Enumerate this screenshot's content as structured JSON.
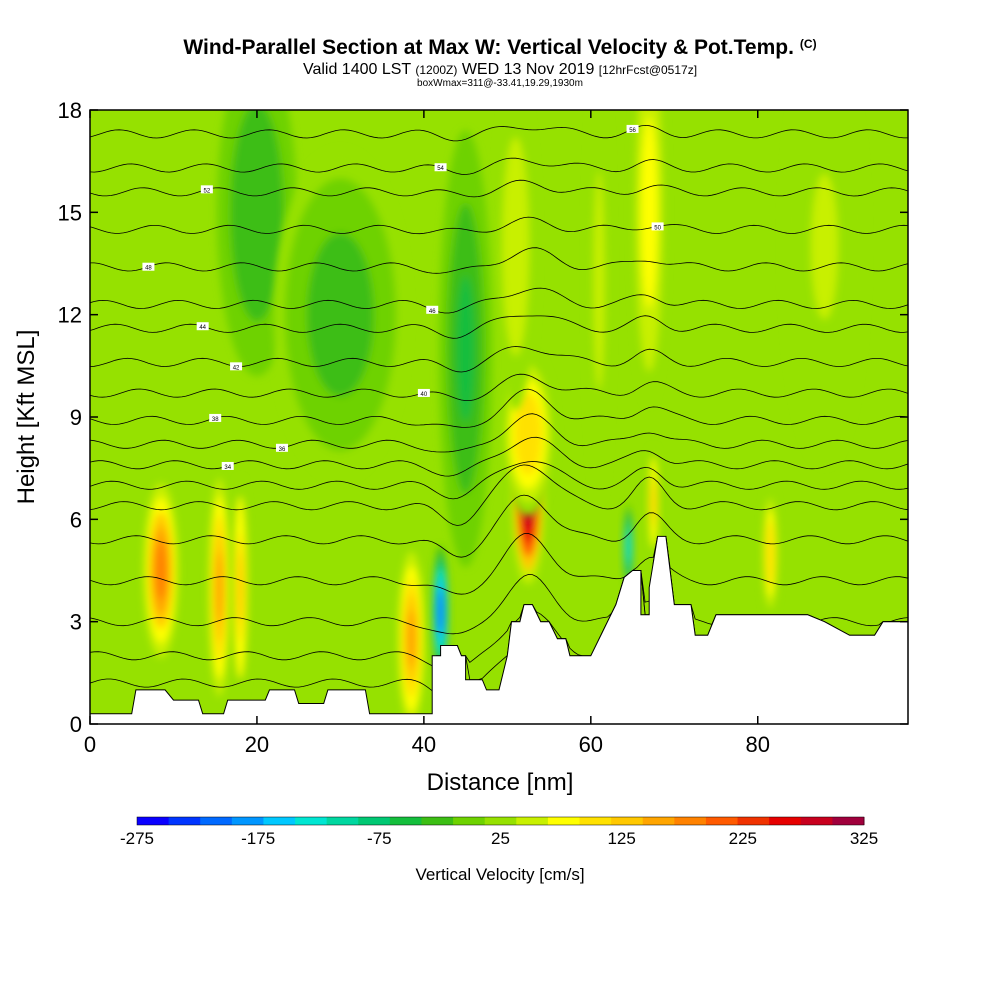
{
  "header": {
    "title": "Wind-Parallel Section at Max W: Vertical Velocity & Pot.Temp.",
    "copyright": "(C)",
    "subtitle_a": "Valid 1400 LST",
    "subtitle_b": "(1200Z)",
    "subtitle_c": "WED 13 Nov 2019",
    "subtitle_d": "[12hrFcst@0517z]",
    "subtitle2": "boxWmax=311@-33.41,19.29,1930m"
  },
  "chart_data": {
    "type": "heatmap",
    "title": "Wind-Parallel Section at Max W: Vertical Velocity & Pot.Temp.",
    "xlabel": "Distance [nm]",
    "ylabel": "Height [Kft MSL]",
    "xlim": [
      0,
      98
    ],
    "ylim": [
      0,
      18
    ],
    "xticks": [
      0,
      20,
      40,
      60,
      80
    ],
    "yticks": [
      0,
      3,
      6,
      9,
      12,
      15,
      18
    ],
    "colorbar": {
      "label": "Vertical Velocity [cm/s]",
      "ticks": [
        -275,
        -175,
        -75,
        25,
        125,
        225,
        325
      ],
      "colors": [
        "#0a00ff",
        "#0035ff",
        "#0069ff",
        "#0096ff",
        "#00c8ff",
        "#00e6d2",
        "#00d7a0",
        "#00c873",
        "#14be3c",
        "#3cbe14",
        "#6ed200",
        "#96e100",
        "#c8f000",
        "#ffff00",
        "#ffe100",
        "#ffc800",
        "#ffa500",
        "#ff8200",
        "#ff5a00",
        "#f03200",
        "#e60000",
        "#c8001e",
        "#a0003c"
      ]
    },
    "background_w": 20,
    "velocity_cells": [
      {
        "x": 8.5,
        "y": 4.5,
        "sx": 1.3,
        "sy": 1.6,
        "w": 190
      },
      {
        "x": 15.5,
        "y": 4.0,
        "sx": 0.8,
        "sy": 2.0,
        "w": 160
      },
      {
        "x": 18.0,
        "y": 4.0,
        "sx": 0.6,
        "sy": 2.0,
        "w": 130
      },
      {
        "x": 38.5,
        "y": 2.5,
        "sx": 1.0,
        "sy": 1.6,
        "w": 170
      },
      {
        "x": 42.0,
        "y": 3.3,
        "sx": 0.6,
        "sy": 1.2,
        "w": -220
      },
      {
        "x": 52.5,
        "y": 6.5,
        "sx": 1.2,
        "sy": 1.5,
        "w": 311
      },
      {
        "x": 52.5,
        "y": 8.5,
        "sx": 2.0,
        "sy": 1.5,
        "w": 110
      },
      {
        "x": 64.5,
        "y": 5.2,
        "sx": 0.4,
        "sy": 0.8,
        "w": -140
      },
      {
        "x": 67.5,
        "y": 6.5,
        "sx": 0.4,
        "sy": 1.0,
        "w": 130
      },
      {
        "x": 81.5,
        "y": 5.0,
        "sx": 0.6,
        "sy": 1.2,
        "w": 110
      },
      {
        "x": 51.0,
        "y": 14.0,
        "sx": 1.5,
        "sy": 3.0,
        "w": 55
      },
      {
        "x": 67.0,
        "y": 15.0,
        "sx": 1.2,
        "sy": 3.5,
        "w": 80
      },
      {
        "x": 61.0,
        "y": 13.0,
        "sx": 0.8,
        "sy": 4.0,
        "w": 45
      },
      {
        "x": 20.0,
        "y": 15.0,
        "sx": 3.0,
        "sy": 3.0,
        "w": -40
      },
      {
        "x": 45.0,
        "y": 11.0,
        "sx": 2.0,
        "sy": 4.0,
        "w": -50
      },
      {
        "x": 30.0,
        "y": 12.0,
        "sx": 5.0,
        "sy": 3.0,
        "w": -25
      },
      {
        "x": 88.0,
        "y": 14.0,
        "sx": 3.0,
        "sy": 4.0,
        "w": 40
      }
    ],
    "terrain": [
      [
        0,
        0.3
      ],
      [
        5,
        0.3
      ],
      [
        5.5,
        1.0
      ],
      [
        9,
        1.0
      ],
      [
        10,
        0.7
      ],
      [
        13,
        0.7
      ],
      [
        13.5,
        0.3
      ],
      [
        16,
        0.3
      ],
      [
        16.5,
        0.7
      ],
      [
        21,
        0.7
      ],
      [
        21.5,
        1.0
      ],
      [
        24.5,
        1.0
      ],
      [
        25,
        0.6
      ],
      [
        28,
        0.6
      ],
      [
        28.5,
        1.0
      ],
      [
        33,
        1.0
      ],
      [
        33.5,
        0.3
      ],
      [
        38,
        0.3
      ],
      [
        41,
        0.3
      ],
      [
        41,
        2.0
      ],
      [
        42,
        2.0
      ],
      [
        42,
        2.3
      ],
      [
        44,
        2.3
      ],
      [
        44.5,
        2.0
      ],
      [
        45,
        2.0
      ],
      [
        45,
        1.3
      ],
      [
        47,
        1.3
      ],
      [
        47.5,
        1.0
      ],
      [
        49,
        1.0
      ],
      [
        50,
        2.0
      ],
      [
        50.5,
        3.0
      ],
      [
        51.5,
        3.0
      ],
      [
        52,
        3.5
      ],
      [
        53,
        3.5
      ],
      [
        54,
        3.0
      ],
      [
        55,
        3.0
      ],
      [
        56,
        2.5
      ],
      [
        57,
        2.5
      ],
      [
        57.5,
        2.0
      ],
      [
        60,
        2.0
      ],
      [
        61,
        2.5
      ],
      [
        62,
        3.0
      ],
      [
        63,
        3.5
      ],
      [
        64,
        4.3
      ],
      [
        65,
        4.5
      ],
      [
        66,
        4.5
      ],
      [
        66,
        3.2
      ],
      [
        67,
        3.2
      ],
      [
        67,
        4.0
      ],
      [
        68,
        5.5
      ],
      [
        69,
        5.5
      ],
      [
        70,
        3.5
      ],
      [
        72,
        3.5
      ],
      [
        72.5,
        2.6
      ],
      [
        74,
        2.6
      ],
      [
        75,
        3.2
      ],
      [
        80,
        3.2
      ],
      [
        86,
        3.2
      ],
      [
        88,
        3.0
      ],
      [
        91,
        2.6
      ],
      [
        94,
        2.6
      ],
      [
        95,
        3.0
      ],
      [
        98,
        3.0
      ]
    ],
    "theta_contours": [
      {
        "base": 1.2,
        "label": "",
        "label_x": 0
      },
      {
        "base": 2.0,
        "label": "",
        "label_x": 0
      },
      {
        "base": 3.0,
        "label": "",
        "label_x": 0
      },
      {
        "base": 4.2,
        "label": "",
        "label_x": 0
      },
      {
        "base": 5.4,
        "label": "",
        "label_x": 0
      },
      {
        "base": 6.4,
        "label": "",
        "label_x": 0
      },
      {
        "base": 7.0,
        "label": "",
        "label_x": 0
      },
      {
        "base": 7.6,
        "label": "34",
        "label_x": 16.5
      },
      {
        "base": 8.2,
        "label": "36",
        "label_x": 23
      },
      {
        "base": 8.9,
        "label": "38",
        "label_x": 15
      },
      {
        "base": 9.7,
        "label": "40",
        "label_x": 40
      },
      {
        "base": 10.6,
        "label": "42",
        "label_x": 17.5
      },
      {
        "base": 11.6,
        "label": "44",
        "label_x": 13.5
      },
      {
        "base": 12.3,
        "label": "46",
        "label_x": 41
      },
      {
        "base": 13.4,
        "label": "48",
        "label_x": 7
      },
      {
        "base": 14.5,
        "label": "50",
        "label_x": 68
      },
      {
        "base": 15.6,
        "label": "52",
        "label_x": 14
      },
      {
        "base": 16.3,
        "label": "54",
        "label_x": 42
      },
      {
        "base": 17.3,
        "label": "56",
        "label_x": 65
      }
    ]
  }
}
